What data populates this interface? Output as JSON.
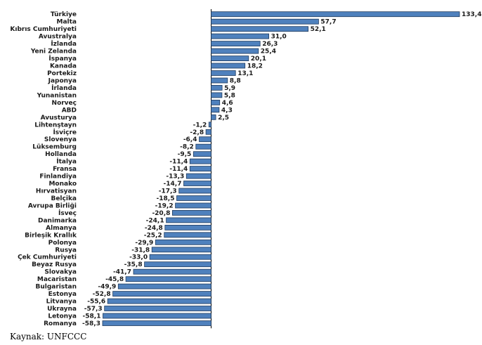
{
  "source": "Kaynak: UNFCCC",
  "colors": {
    "bar_fill": "#4f81bd",
    "bar_stroke": "#1f3a5c",
    "axis": "#000000"
  },
  "chart_data": {
    "type": "bar",
    "orientation": "horizontal",
    "categories": [
      "Türkiye",
      "Malta",
      "Kıbrıs Cumhuriyeti",
      "Avustralya",
      "İzlanda",
      "Yeni Zelanda",
      "İspanya",
      "Kanada",
      "Portekiz",
      "Japonya",
      "İrlanda",
      "Yunanistan",
      "Norveç",
      "ABD",
      "Avusturya",
      "Lihtenştayn",
      "İsviçre",
      "Slovenya",
      "Lüksemburg",
      "Hollanda",
      "İtalya",
      "Fransa",
      "Finlandiya",
      "Monako",
      "Hırvatisyan",
      "Belçika",
      "Avrupa Birliği",
      "İsveç",
      "Danimarka",
      "Almanya",
      "Birleşik Krallık",
      "Polonya",
      "Rusya",
      "Çek Cumhuriyeti",
      "Beyaz Rusya",
      "Slovakya",
      "Macaristan",
      "Bulgaristan",
      "Estonya",
      "Litvanya",
      "Ukrayna",
      "Letonya",
      "Romanya"
    ],
    "values": [
      133.4,
      57.7,
      52.1,
      31.0,
      26.3,
      25.4,
      20.1,
      18.2,
      13.1,
      8.8,
      5.9,
      5.8,
      4.6,
      4.3,
      2.5,
      -1.2,
      -2.8,
      -6.4,
      -8.2,
      -9.5,
      -11.4,
      -11.4,
      -13.3,
      -14.7,
      -17.3,
      -18.5,
      -19.2,
      -20.8,
      -24.1,
      -24.8,
      -25.2,
      -29.9,
      -31.8,
      -33.0,
      -35.8,
      -41.7,
      -45.8,
      -49.9,
      -52.8,
      -55.6,
      -57.3,
      -58.1,
      -58.3
    ],
    "value_labels": [
      "133,4",
      "57,7",
      "52,1",
      "31,0",
      "26,3",
      "25,4",
      "20,1",
      "18,2",
      "13,1",
      "8,8",
      "5,9",
      "5,8",
      "4,6",
      "4,3",
      "2,5",
      "-1,2",
      "-2,8",
      "-6,4",
      "-8,2",
      "-9,5",
      "-11,4",
      "-11,4",
      "-13,3",
      "-14,7",
      "-17,3",
      "-18,5",
      "-19,2",
      "-20,8",
      "-24,1",
      "-24,8",
      "-25,2",
      "-29,9",
      "-31,8",
      "-33,0",
      "-35,8",
      "-41,7",
      "-45,8",
      "-49,9",
      "-52,8",
      "-55,6",
      "-57,3",
      "-58,1",
      "-58,3"
    ],
    "xlim": [
      -66,
      133.4
    ],
    "grid": false,
    "legend": "none"
  }
}
